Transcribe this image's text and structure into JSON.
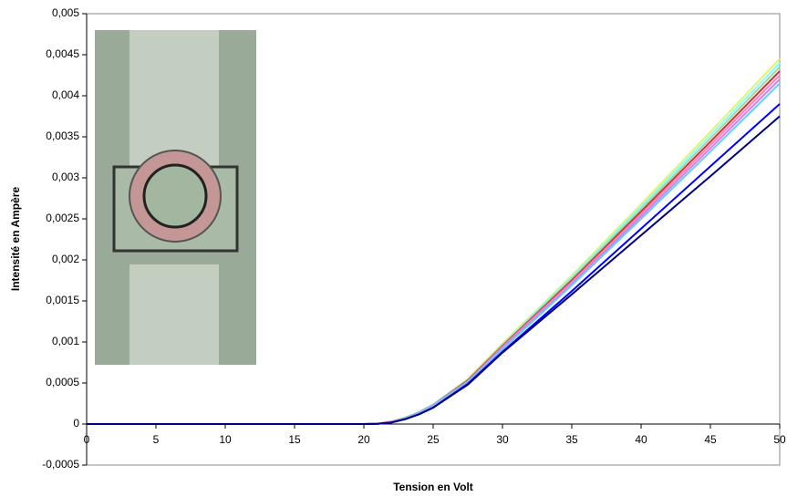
{
  "chart_data": {
    "type": "line",
    "x_label": "Tension en Volt",
    "y_label": "Intensité en Ampère",
    "x": [
      0,
      5,
      10,
      15,
      20,
      21,
      22,
      23,
      24,
      25,
      27.5,
      30,
      35,
      40,
      45,
      50
    ],
    "series": [
      {
        "color": "#e8f070",
        "values": [
          0,
          0,
          0,
          0,
          0,
          5e-06,
          3e-05,
          8e-05,
          0.00015,
          0.00024,
          0.00055,
          0.00098,
          0.00181,
          0.00268,
          0.00356,
          0.00445
        ]
      },
      {
        "color": "#80ffff",
        "values": [
          0,
          0,
          0,
          0,
          0,
          5e-06,
          3e-05,
          8e-05,
          0.00015,
          0.00024,
          0.00054,
          0.00097,
          0.00179,
          0.00265,
          0.00352,
          0.0044
        ]
      },
      {
        "color": "#a0d8a0",
        "values": [
          0,
          0,
          0,
          0,
          0,
          5e-06,
          3e-05,
          8e-05,
          0.00014,
          0.00023,
          0.00054,
          0.00096,
          0.00177,
          0.00262,
          0.00348,
          0.00435
        ]
      },
      {
        "color": "#cc3333",
        "values": [
          0,
          0,
          0,
          0,
          0,
          4e-06,
          3e-05,
          7e-05,
          0.00014,
          0.00023,
          0.00053,
          0.00095,
          0.00175,
          0.00259,
          0.00344,
          0.0043
        ]
      },
      {
        "color": "#ff80c0",
        "values": [
          0,
          0,
          0,
          0,
          0,
          4e-06,
          3e-05,
          7e-05,
          0.00014,
          0.00023,
          0.00052,
          0.00094,
          0.00173,
          0.00256,
          0.0034,
          0.00425
        ]
      },
      {
        "color": "#cc88dd",
        "values": [
          0,
          0,
          0,
          0,
          0,
          4e-06,
          2e-05,
          7e-05,
          0.00014,
          0.00022,
          0.00052,
          0.00093,
          0.00171,
          0.00253,
          0.00336,
          0.0042
        ]
      },
      {
        "color": "#66ccff",
        "values": [
          0,
          0,
          0,
          0,
          0,
          4e-06,
          2e-05,
          7e-05,
          0.00013,
          0.00022,
          0.00051,
          0.00091,
          0.00169,
          0.0025,
          0.00332,
          0.00415
        ]
      },
      {
        "color": "#0000ff",
        "values": [
          0,
          0,
          0,
          0,
          0,
          3e-06,
          2e-05,
          6e-05,
          0.00012,
          0.0002,
          0.00049,
          0.00088,
          0.00162,
          0.00238,
          0.00314,
          0.0039
        ]
      },
      {
        "color": "#000080",
        "values": [
          0,
          0,
          0,
          0,
          0,
          3e-06,
          2e-05,
          6e-05,
          0.00012,
          0.0002,
          0.00048,
          0.00087,
          0.00158,
          0.0023,
          0.00302,
          0.00375
        ]
      }
    ],
    "xlim": [
      0,
      50
    ],
    "xticks": [
      0,
      5,
      10,
      15,
      20,
      25,
      30,
      35,
      40,
      45,
      50
    ],
    "ylim": [
      -0.0005,
      0.005
    ],
    "yticks": [
      {
        "value": -0.0005,
        "label": "-0,0005"
      },
      {
        "value": 0,
        "label": "0"
      },
      {
        "value": 0.0005,
        "label": "0,0005"
      },
      {
        "value": 0.001,
        "label": "0,001"
      },
      {
        "value": 0.0015,
        "label": "0,0015"
      },
      {
        "value": 0.002,
        "label": "0,002"
      },
      {
        "value": 0.0025,
        "label": "0,0025"
      },
      {
        "value": 0.003,
        "label": "0,003"
      },
      {
        "value": 0.0035,
        "label": "0,0035"
      },
      {
        "value": 0.004,
        "label": "0,004"
      },
      {
        "value": 0.0045,
        "label": "0,0045"
      },
      {
        "value": 0.005,
        "label": "0,005"
      }
    ],
    "grid": false
  }
}
